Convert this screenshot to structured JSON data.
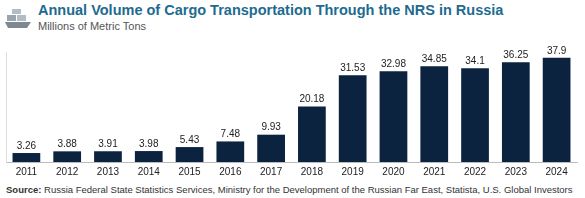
{
  "chart_data": {
    "type": "bar",
    "title": "Annual Volume of Cargo Transportation Through the NRS in Russia",
    "subtitle": "Millions of Metric Tons",
    "source": "Source: Russia Federal State Statistics Services, Ministry for the Development of the Russian Far East, Statista, U.S. Global Investors",
    "categories": [
      "2011",
      "2012",
      "2013",
      "2014",
      "2015",
      "2016",
      "2017",
      "2018",
      "2019",
      "2020",
      "2021",
      "2022",
      "2023",
      "2024"
    ],
    "values": [
      3.26,
      3.88,
      3.91,
      3.98,
      5.43,
      7.48,
      9.93,
      20.18,
      31.53,
      32.98,
      34.85,
      34.1,
      36.25,
      37.9
    ],
    "color": "#0c2340",
    "ylim": [
      0,
      40
    ],
    "grid": false,
    "data_labels": true,
    "tick_labels": "x"
  }
}
